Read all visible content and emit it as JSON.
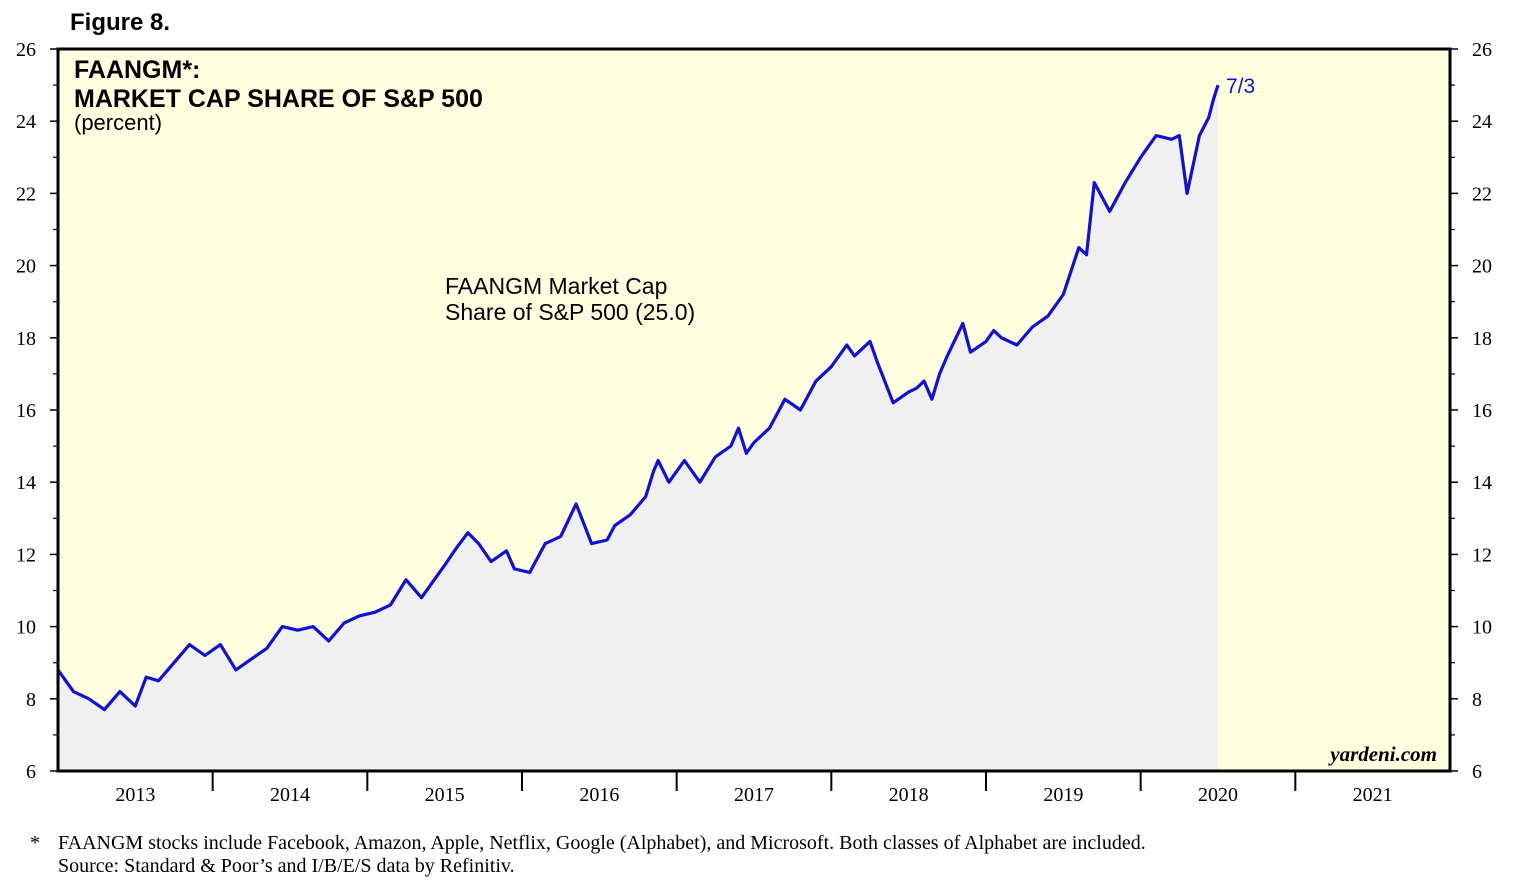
{
  "figure_label": "Figure 8.",
  "chart_data": {
    "type": "area",
    "title_line1": "FAANGM*:",
    "title_line2": "MARKET CAP SHARE OF S&P 500",
    "subtitle": "(percent)",
    "series": [
      {
        "name": "FAANGM Market Cap Share of S&P 500",
        "label_line1": "FAANGM Market Cap",
        "label_line2": "Share of S&P 500 (25.0)",
        "color": "#1010d8",
        "x": [
          2012.5,
          2012.6,
          2012.7,
          2012.8,
          2012.9,
          2013.0,
          2013.07,
          2013.15,
          2013.25,
          2013.35,
          2013.45,
          2013.55,
          2013.65,
          2013.75,
          2013.85,
          2013.95,
          2014.05,
          2014.15,
          2014.25,
          2014.35,
          2014.45,
          2014.55,
          2014.65,
          2014.75,
          2014.85,
          2014.95,
          2015.0,
          2015.08,
          2015.15,
          2015.22,
          2015.3,
          2015.4,
          2015.45,
          2015.55,
          2015.65,
          2015.75,
          2015.85,
          2015.95,
          2016.05,
          2016.1,
          2016.2,
          2016.3,
          2016.35,
          2016.38,
          2016.45,
          2016.55,
          2016.65,
          2016.75,
          2016.85,
          2016.9,
          2016.95,
          2017.0,
          2017.1,
          2017.2,
          2017.3,
          2017.4,
          2017.5,
          2017.6,
          2017.65,
          2017.75,
          2017.8,
          2017.9,
          2018.0,
          2018.05,
          2018.1,
          2018.15,
          2018.2,
          2018.25,
          2018.35,
          2018.4,
          2018.5,
          2018.55,
          2018.6,
          2018.7,
          2018.8,
          2018.9,
          2019.0,
          2019.1,
          2019.15,
          2019.2,
          2019.3,
          2019.4,
          2019.5,
          2019.6,
          2019.7,
          2019.75,
          2019.8,
          2019.88,
          2019.94,
          2019.97,
          2020.0
        ],
        "y": [
          8.8,
          8.2,
          8.0,
          7.7,
          8.2,
          7.8,
          8.6,
          8.5,
          9.0,
          9.5,
          9.2,
          9.5,
          8.8,
          9.1,
          9.4,
          10.0,
          9.9,
          10.0,
          9.6,
          10.1,
          10.3,
          10.4,
          10.6,
          11.3,
          10.8,
          11.4,
          11.7,
          12.2,
          12.6,
          12.3,
          11.8,
          12.1,
          11.6,
          11.5,
          12.3,
          12.5,
          13.4,
          12.3,
          12.4,
          12.8,
          13.1,
          13.6,
          14.3,
          14.6,
          14.0,
          14.6,
          14.0,
          14.7,
          15.0,
          15.5,
          14.8,
          15.1,
          15.5,
          16.3,
          16.0,
          16.8,
          17.2,
          17.8,
          17.5,
          17.9,
          17.3,
          16.2,
          16.5,
          16.6,
          16.8,
          16.3,
          17.0,
          17.5,
          18.4,
          17.6,
          17.9,
          18.2,
          18.0,
          17.8,
          18.3,
          18.6,
          19.2,
          20.5,
          20.3,
          22.3,
          21.5,
          22.3,
          23.0,
          23.6,
          23.5,
          23.6,
          22.0,
          23.6,
          24.1,
          24.6,
          25.0
        ]
      }
    ],
    "end_label": "7/3",
    "x_tick_labels": [
      "2013",
      "2014",
      "2015",
      "2016",
      "2017",
      "2018",
      "2019",
      "2020",
      "2021"
    ],
    "y_tick_labels": [
      "6",
      "8",
      "10",
      "12",
      "14",
      "16",
      "18",
      "20",
      "22",
      "24",
      "26"
    ],
    "xlim": [
      2012.5,
      2021.5
    ],
    "ylim": [
      6,
      26
    ],
    "y_ticks": [
      6,
      8,
      10,
      12,
      14,
      16,
      18,
      20,
      22,
      24,
      26
    ],
    "grid": false,
    "dual_y_axis": true
  },
  "colors": {
    "plot_background": "#ffffe0",
    "area_fill": "#f0f0f0",
    "line": "#1010d8"
  },
  "watermark": "yardeni.com",
  "footnote_marker": "*",
  "footnote_line1": "FAANGM stocks include Facebook, Amazon, Apple, Netflix, Google (Alphabet), and Microsoft. Both classes of Alphabet are included.",
  "footnote_line2": "Source: Standard & Poor’s and I/B/E/S data by Refinitiv."
}
